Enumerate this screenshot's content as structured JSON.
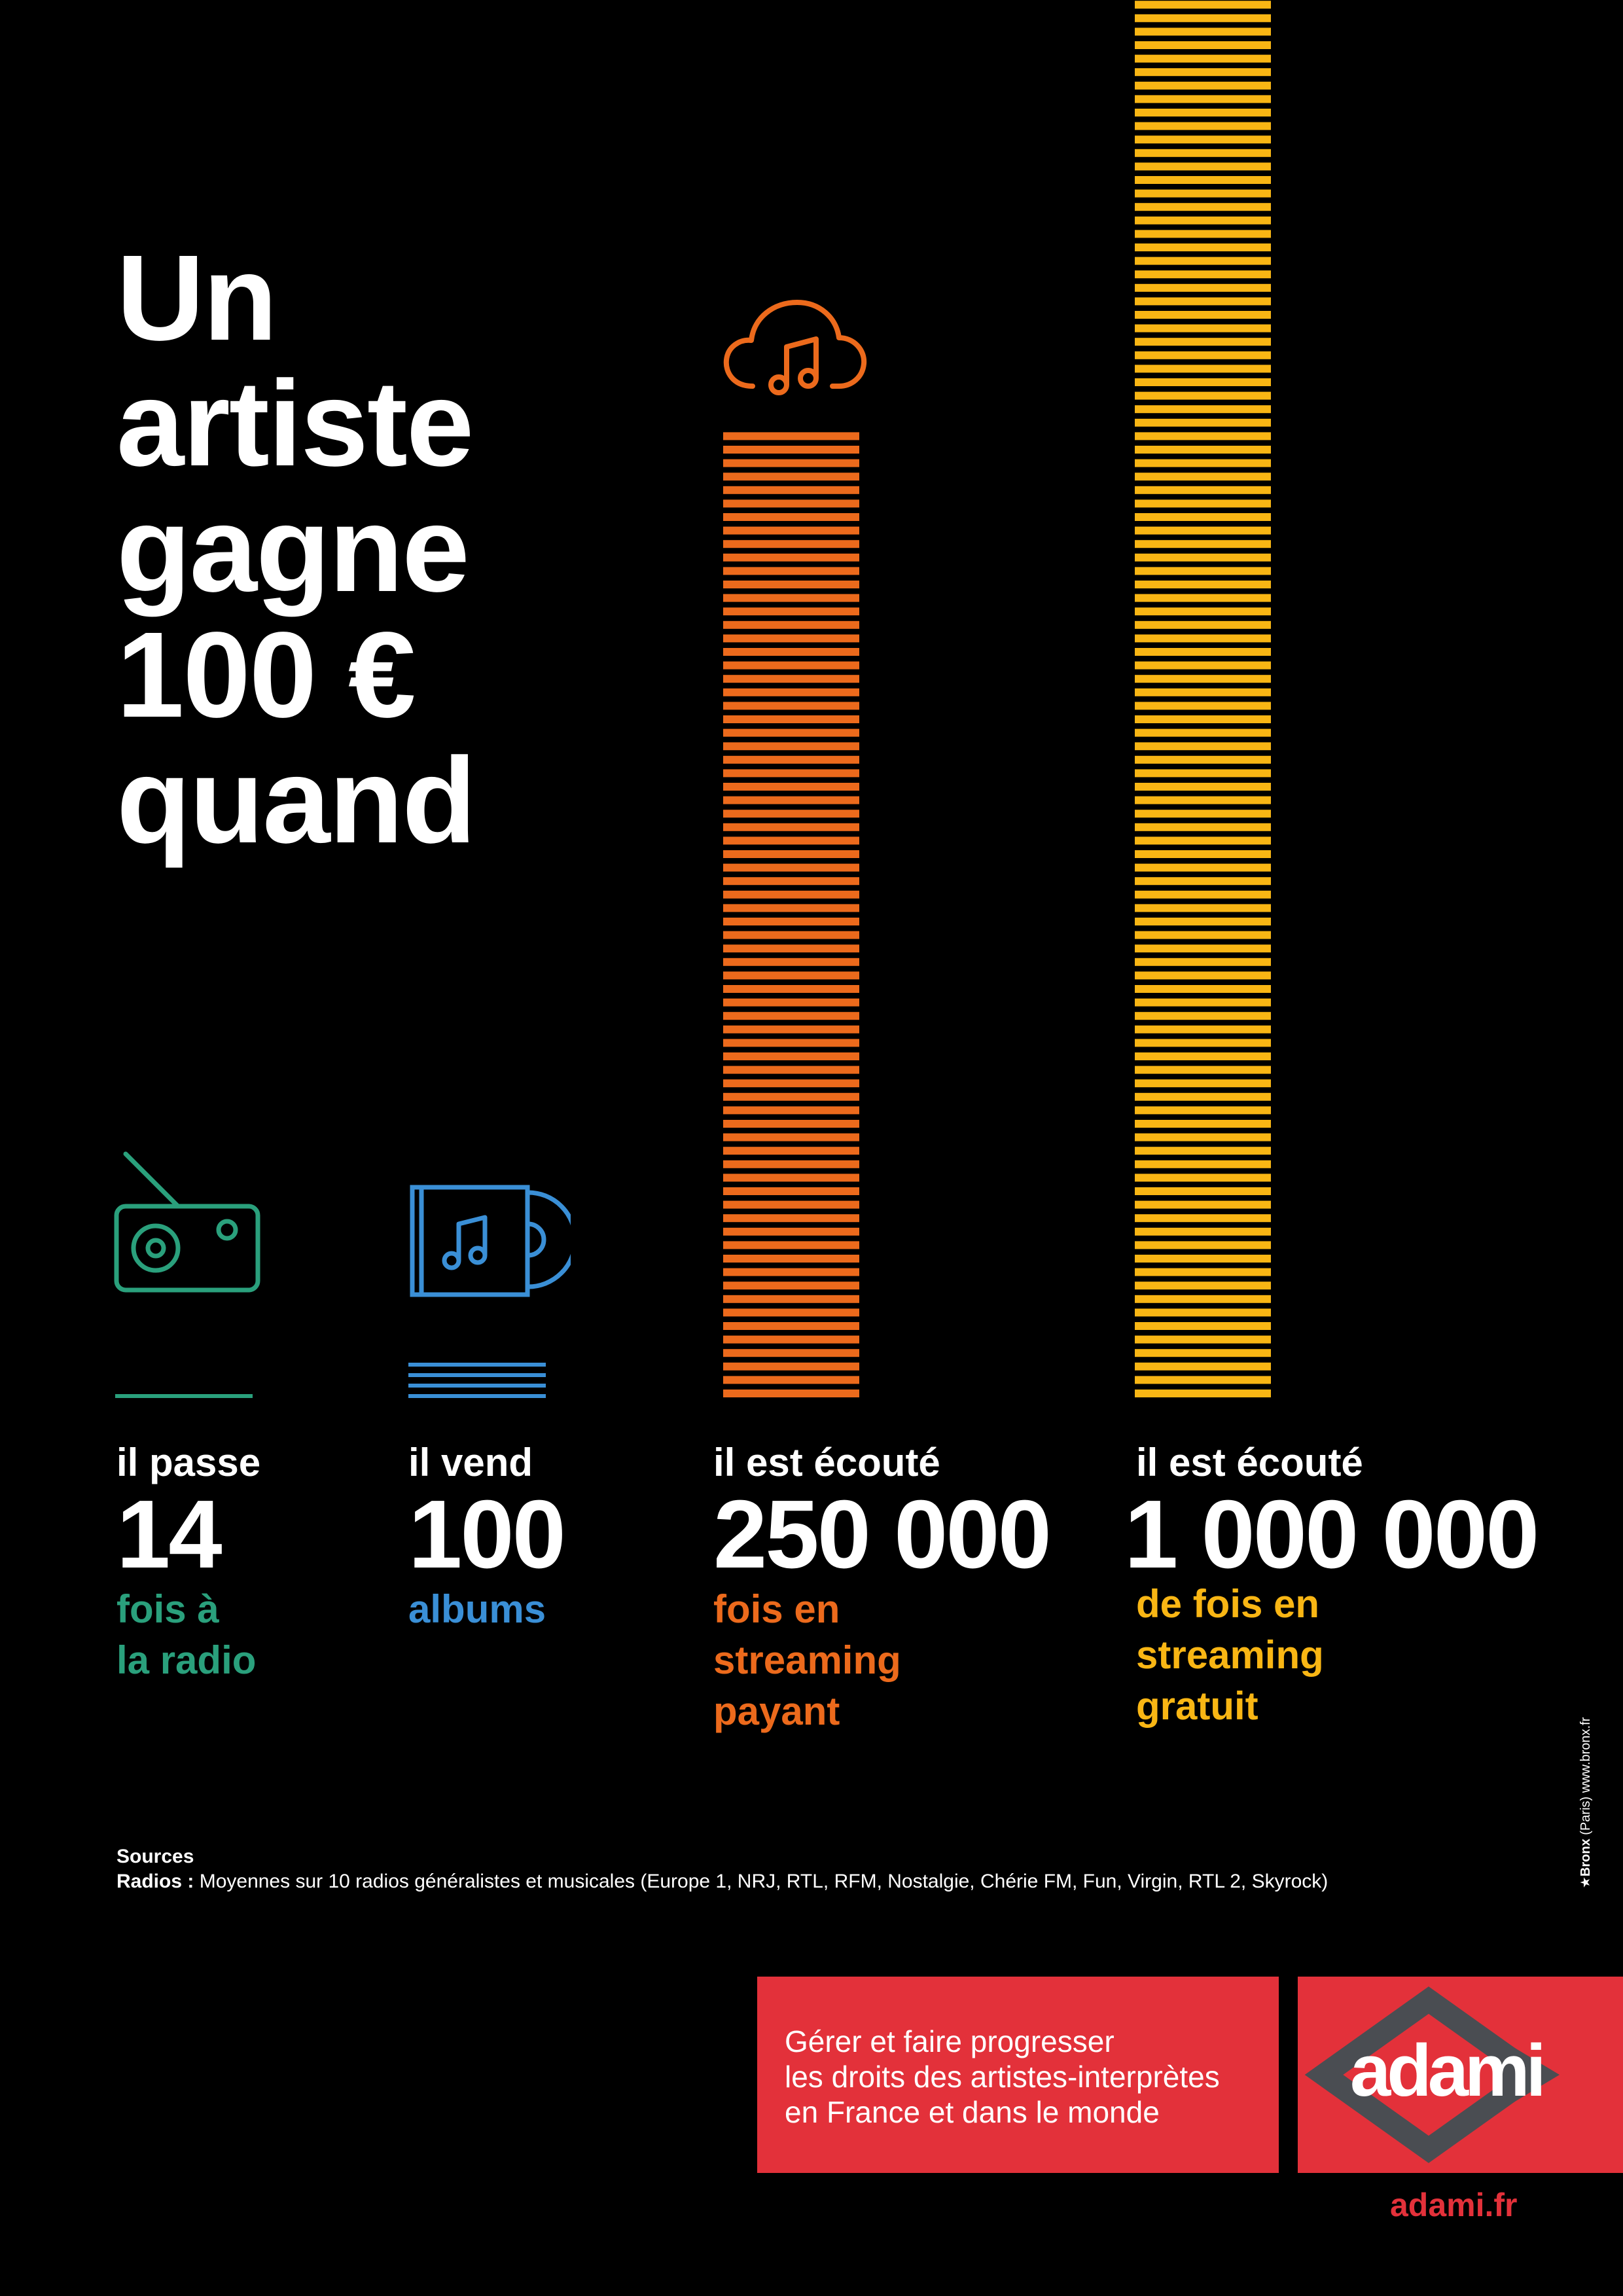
{
  "headline": {
    "lines": [
      "Un",
      "artiste",
      "gagne",
      "100 €",
      "quand"
    ]
  },
  "columns": [
    {
      "id": "radio",
      "lead": "il passe",
      "value": "14",
      "sub": [
        "fois à",
        "la radio"
      ],
      "color": "#2aa07c",
      "icon": "radio-icon"
    },
    {
      "id": "albums",
      "lead": "il vend",
      "value": "100",
      "sub": [
        "albums"
      ],
      "color": "#3a8fd6",
      "icon": "album-cd-icon"
    },
    {
      "id": "paid-streaming",
      "lead": "il est écouté",
      "value": "250 000",
      "sub": [
        "fois en",
        "streaming",
        "payant"
      ],
      "color": "#ec6a1c",
      "icon": "cloud-music-icon"
    },
    {
      "id": "free-streaming",
      "lead": "il est écouté",
      "value": "1 000 000",
      "sub": [
        "de fois en",
        "streaming",
        "gratuit"
      ],
      "color": "#f9b614",
      "icon": null
    }
  ],
  "chart_data": {
    "type": "bar",
    "categories": [
      "il passe 14 fois à la radio",
      "il vend 100 albums",
      "il est écouté 250 000 fois en streaming payant",
      "il est écouté 1 000 000 de fois en streaming gratuit"
    ],
    "values": [
      14,
      100,
      250000,
      1000000
    ],
    "colors": [
      "#2aa07c",
      "#3a8fd6",
      "#ec6a1c",
      "#f9b614"
    ]
  },
  "sources": {
    "title": "Sources",
    "radios_label": "Radios :",
    "radios_text": "Moyennes sur 10 radios généralistes et musicales (Europe 1, NRJ, RTL, RFM, Nostalgie, Chérie FM, Fun, Virgin, RTL 2, Skyrock)"
  },
  "credit": {
    "brand": "Bronx",
    "rest": " (Paris) www.bronx.fr"
  },
  "footer": {
    "tagline": [
      "Gérer et faire progresser",
      "les droits des artistes-interprètes",
      "en France et dans le monde"
    ],
    "logo_text": "adami",
    "url": "adami.fr",
    "brand_color": "#e3313a",
    "logo_shape_color": "#4a4d52"
  }
}
